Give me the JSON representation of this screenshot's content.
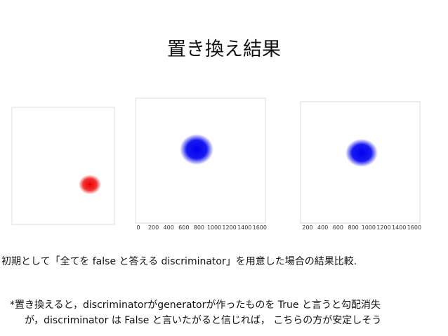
{
  "title": "置き換え結果",
  "plots": [
    {
      "x_tick_labels": []
    },
    {
      "x_tick_labels": [
        "0",
        "200",
        "400",
        "600",
        "800",
        "1000",
        "1200",
        "1400",
        "1600"
      ]
    },
    {
      "x_tick_labels": [
        "200",
        "400",
        "600",
        "800",
        "1000",
        "1200",
        "1400",
        "1600"
      ]
    }
  ],
  "caption": "初期として「全てを false と答える discriminator」を用意した場合の結果比較.",
  "note": {
    "lines": [
      "*置き換えると，discriminatorがgeneratorが作ったものを True と言うと勾配消失",
      "が，discriminator は False と言いたがると信じれば， こちらの方が安定しそう"
    ]
  }
}
